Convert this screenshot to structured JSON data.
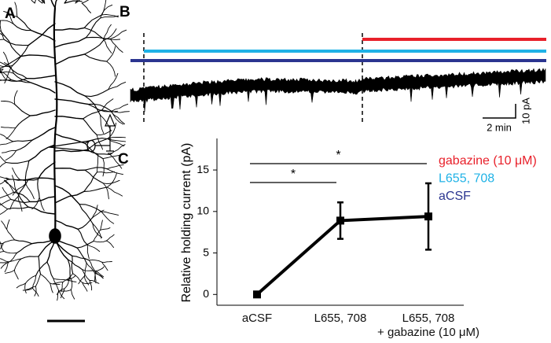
{
  "panel_labels": [
    "A",
    "B",
    "C"
  ],
  "panel_b": {
    "legend": [
      {
        "name": "gabazine (10 μM)",
        "color": "#e8202a"
      },
      {
        "name": "L655, 708",
        "color": "#1fb2e6"
      },
      {
        "name": "aCSF",
        "color": "#2b3590"
      }
    ],
    "scale_x": "2 min",
    "scale_y": "10 pA"
  },
  "chart_data": {
    "type": "line",
    "y_label": "Relative holding current (pA)",
    "categories": [
      "aCSF",
      "L655, 708",
      "L655, 708\n+ gabazine (10 μM)"
    ],
    "values": [
      0,
      8.9,
      9.4
    ],
    "errors": [
      0,
      2.2,
      4.0
    ],
    "color": "#000000",
    "ylim": [
      -1.3,
      18.8
    ],
    "yticks": [
      0,
      5,
      10,
      15
    ],
    "annotations": [
      "*",
      "*"
    ]
  }
}
